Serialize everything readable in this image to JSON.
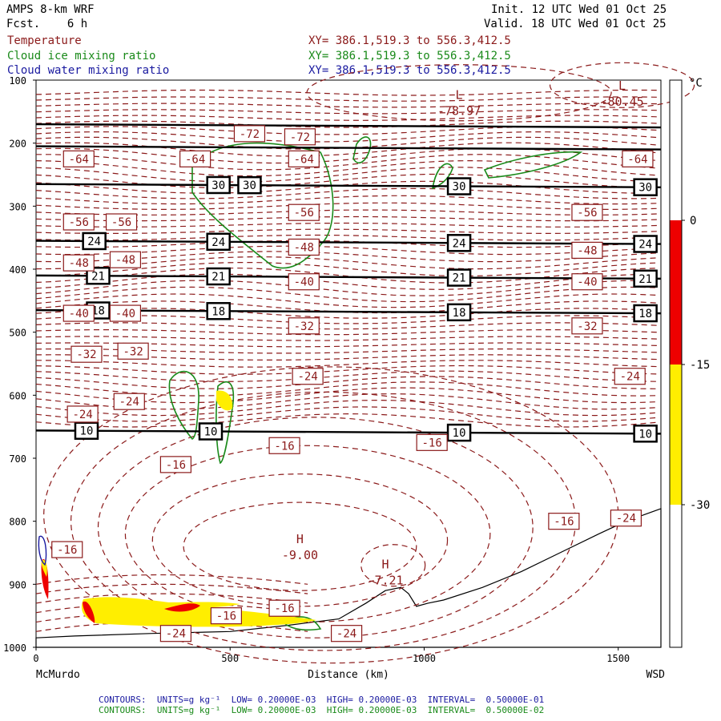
{
  "header": {
    "model": "AMPS 8-km WRF",
    "forecast": "Fcst.    6 h",
    "init": "Init. 12 UTC Wed 01 Oct 25",
    "valid": "Valid. 18 UTC Wed 01 Oct 25"
  },
  "legend": [
    {
      "label": "Temperature",
      "xy": "XY= 386.1,519.3 to 556.3,412.5",
      "color": "#8b1a1a"
    },
    {
      "label": "Cloud ice mixing ratio",
      "xy": "XY= 386.1,519.3 to 556.3,412.5",
      "color": "#1a8a1a"
    },
    {
      "label": "Cloud water mixing ratio",
      "xy": "XY= 386.1,519.3 to 556.3,412.5",
      "color": "#1a1aa0"
    }
  ],
  "footer": [
    {
      "text": "CONTOURS:  UNITS=g kg⁻¹  LOW= 0.20000E-03  HIGH= 0.20000E-03  INTERVAL=  0.50000E-01",
      "color": "#1a1aa0"
    },
    {
      "text": "CONTOURS:  UNITS=g kg⁻¹  LOW= 0.20000E-03  HIGH= 0.20000E-03  INTERVAL=  0.50000E-02",
      "color": "#1a8a1a"
    }
  ],
  "chart_data": {
    "type": "cross-section",
    "xlabel": "Distance (km)",
    "x_ticks": [
      0,
      500,
      1000,
      1500
    ],
    "x_range": [
      0,
      1610
    ],
    "x_end_labels": {
      "left": "McMurdo",
      "right": "WSD"
    },
    "y_ticks": [
      100,
      200,
      300,
      400,
      500,
      600,
      700,
      800,
      900,
      1000
    ],
    "y_range": [
      100,
      1000
    ],
    "y_inverted": true,
    "colorbar": {
      "unit": "°C",
      "ticks": [
        "0",
        "-15",
        "-30"
      ],
      "segments": [
        {
          "from": 0,
          "to": -15,
          "color": "#ee0000"
        },
        {
          "from": -15,
          "to": -30,
          "color": "#ffee00"
        }
      ]
    },
    "temperature_labels": [
      {
        "x": 110,
        "p": 225,
        "v": "-64"
      },
      {
        "x": 410,
        "p": 225,
        "v": "-64"
      },
      {
        "x": 550,
        "p": 185,
        "v": "-72"
      },
      {
        "x": 680,
        "p": 190,
        "v": "-72"
      },
      {
        "x": 690,
        "p": 225,
        "v": "-64"
      },
      {
        "x": 1550,
        "p": 225,
        "v": "-64"
      },
      {
        "x": 110,
        "p": 325,
        "v": "-56"
      },
      {
        "x": 220,
        "p": 325,
        "v": "-56"
      },
      {
        "x": 690,
        "p": 310,
        "v": "-56"
      },
      {
        "x": 1420,
        "p": 310,
        "v": "-56"
      },
      {
        "x": 110,
        "p": 390,
        "v": "-48"
      },
      {
        "x": 230,
        "p": 385,
        "v": "-48"
      },
      {
        "x": 690,
        "p": 365,
        "v": "-48"
      },
      {
        "x": 1420,
        "p": 370,
        "v": "-48"
      },
      {
        "x": 110,
        "p": 470,
        "v": "-40"
      },
      {
        "x": 230,
        "p": 470,
        "v": "-40"
      },
      {
        "x": 690,
        "p": 420,
        "v": "-40"
      },
      {
        "x": 1420,
        "p": 420,
        "v": "-40"
      },
      {
        "x": 130,
        "p": 535,
        "v": "-32"
      },
      {
        "x": 250,
        "p": 530,
        "v": "-32"
      },
      {
        "x": 690,
        "p": 490,
        "v": "-32"
      },
      {
        "x": 1420,
        "p": 490,
        "v": "-32"
      },
      {
        "x": 240,
        "p": 610,
        "v": "-24"
      },
      {
        "x": 120,
        "p": 630,
        "v": "-24"
      },
      {
        "x": 700,
        "p": 570,
        "v": "-24"
      },
      {
        "x": 1530,
        "p": 570,
        "v": "-24"
      },
      {
        "x": 360,
        "p": 710,
        "v": "-16"
      },
      {
        "x": 640,
        "p": 680,
        "v": "-16"
      },
      {
        "x": 1020,
        "p": 675,
        "v": "-16"
      },
      {
        "x": 1360,
        "p": 800,
        "v": "-16"
      },
      {
        "x": 80,
        "p": 845,
        "v": "-16"
      },
      {
        "x": 490,
        "p": 950,
        "v": "-16"
      },
      {
        "x": 640,
        "p": 938,
        "v": "-16"
      },
      {
        "x": 1520,
        "p": 795,
        "v": "-24"
      },
      {
        "x": 800,
        "p": 978,
        "v": "-24"
      },
      {
        "x": 360,
        "p": 978,
        "v": "-24"
      }
    ],
    "extrema": [
      {
        "kind": "L",
        "value": "-78.97",
        "x": 1090,
        "p": 130
      },
      {
        "kind": "L",
        "value": "-80.45",
        "x": 1510,
        "p": 115
      },
      {
        "kind": "H",
        "value": "-9.00",
        "x": 680,
        "p": 835
      },
      {
        "kind": "H",
        "value": "-7.21",
        "x": 900,
        "p": 875
      }
    ],
    "black_isolines": [
      {
        "p": 170,
        "label": ""
      },
      {
        "p": 205,
        "label": ""
      },
      {
        "p": 265,
        "label": "30",
        "label_x": [
          470,
          550,
          1090,
          1570
        ]
      },
      {
        "p": 355,
        "label": "24",
        "label_x": [
          150,
          470,
          1090,
          1570
        ]
      },
      {
        "p": 410,
        "label": "21",
        "label_x": [
          160,
          470,
          1090,
          1570
        ]
      },
      {
        "p": 465,
        "label": "18",
        "label_x": [
          160,
          470,
          1090,
          1570
        ]
      },
      {
        "p": 656,
        "label": "10",
        "label_x": [
          130,
          450,
          1090,
          1570
        ]
      }
    ]
  }
}
